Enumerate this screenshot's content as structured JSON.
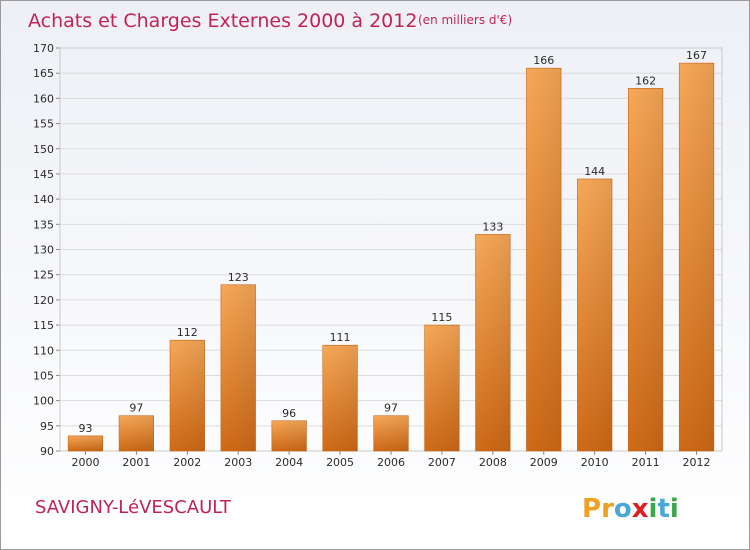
{
  "header": {
    "title": "Achats et Charges Externes 2000 à 2012",
    "subtitle": "(en milliers d'€)"
  },
  "footer": {
    "location": "SAVIGNY-LéVESCAULT",
    "brand": {
      "text": "Proxiti",
      "letters": [
        "P",
        "r",
        "o",
        "x",
        "i",
        "t",
        "i"
      ],
      "colors": [
        "#f0a020",
        "#f0a020",
        "#4aa8d8",
        "#e02020",
        "#3aa84a",
        "#4aa8d8",
        "#3aa84a"
      ]
    }
  },
  "colors": {
    "bar_light": "#f7a857",
    "bar_dark": "#cf6a17",
    "grid": "#dcdcdc",
    "title": "#c22355",
    "axis_text": "#2b2b2b",
    "background_top": "#eef0f6",
    "background_bottom": "#ffffff"
  },
  "chart_data": {
    "type": "bar",
    "categories": [
      "2000",
      "2001",
      "2002",
      "2003",
      "2004",
      "2005",
      "2006",
      "2007",
      "2008",
      "2009",
      "2010",
      "2011",
      "2012"
    ],
    "values": [
      93,
      97,
      112,
      123,
      96,
      111,
      97,
      115,
      133,
      166,
      144,
      162,
      167
    ],
    "title": "Achats et Charges Externes 2000 à 2012",
    "subtitle": "(en milliers d'€)",
    "ylim": [
      90,
      170
    ],
    "yticks": [
      90,
      95,
      100,
      105,
      110,
      115,
      120,
      125,
      130,
      135,
      140,
      145,
      150,
      155,
      160,
      165,
      170
    ],
    "grid": true,
    "data_labels": true
  }
}
